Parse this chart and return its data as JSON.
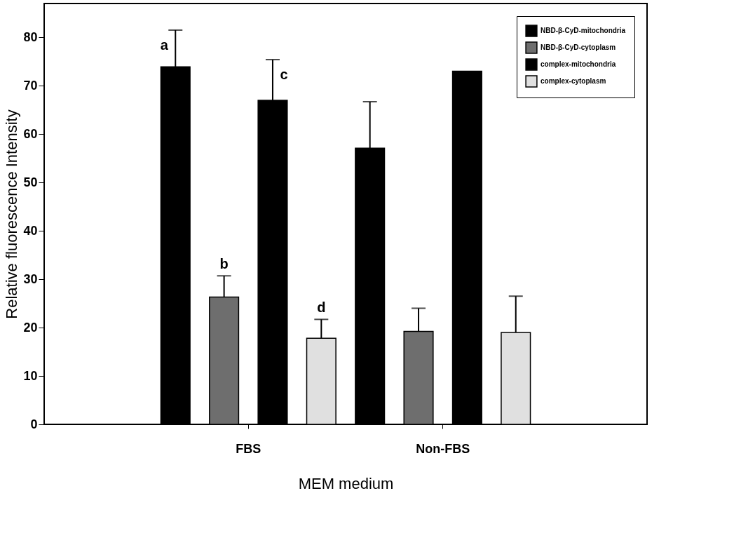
{
  "chart_data": {
    "type": "bar",
    "xlabel": "MEM medium",
    "ylabel": "Relative fluorescence Intensity",
    "categories": [
      "FBS",
      "Non-FBS"
    ],
    "series": [
      {
        "name": "NBD-β-CyD-mitochondria",
        "color": "#000000",
        "values": [
          73.9,
          57.1
        ],
        "errors": [
          [
            73.9,
            81.5
          ],
          [
            57.1,
            66.7
          ]
        ]
      },
      {
        "name": "NBD-β-CyD-cytoplasm",
        "color": "#6e6e6e",
        "values": [
          26.3,
          19.2
        ],
        "errors": [
          [
            26.3,
            30.7
          ],
          [
            19.2,
            24.0
          ]
        ]
      },
      {
        "name": "complex-mitochondria",
        "color": "#000000",
        "values": [
          67.0,
          73.0
        ],
        "errors": [
          [
            67.0,
            75.4
          ],
          null
        ]
      },
      {
        "name": "complex-cytoplasm",
        "color": "#e0e0e0",
        "values": [
          17.8,
          19.0
        ],
        "errors": [
          [
            17.8,
            21.7
          ],
          [
            19.0,
            26.5
          ]
        ]
      }
    ],
    "ylim": [
      0,
      87
    ],
    "yticks": [
      0,
      10,
      20,
      30,
      40,
      50,
      60,
      70,
      80
    ],
    "grid": false,
    "legend": "top right",
    "annotations": [
      "a",
      "b",
      "c",
      "d"
    ]
  }
}
